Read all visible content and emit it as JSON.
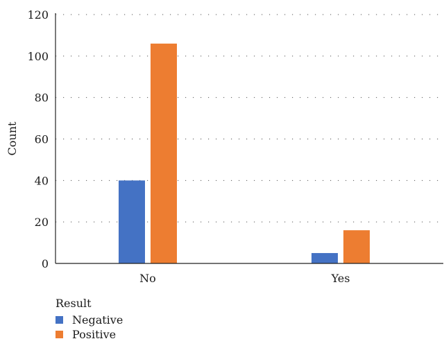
{
  "chart_data": {
    "type": "bar",
    "categories": [
      "No",
      "Yes"
    ],
    "series": [
      {
        "name": "Negative",
        "values": [
          40,
          5
        ],
        "color": "#4472c4"
      },
      {
        "name": "Positive",
        "values": [
          106,
          16
        ],
        "color": "#ed7d31"
      }
    ],
    "xlabel": "",
    "ylabel": "Count",
    "ylim": [
      0,
      120
    ],
    "yticks": [
      0,
      20,
      40,
      60,
      80,
      100,
      120
    ],
    "grid": "horizontal-dotted",
    "legend": {
      "title": "Result",
      "placement": "bottom-left"
    }
  }
}
